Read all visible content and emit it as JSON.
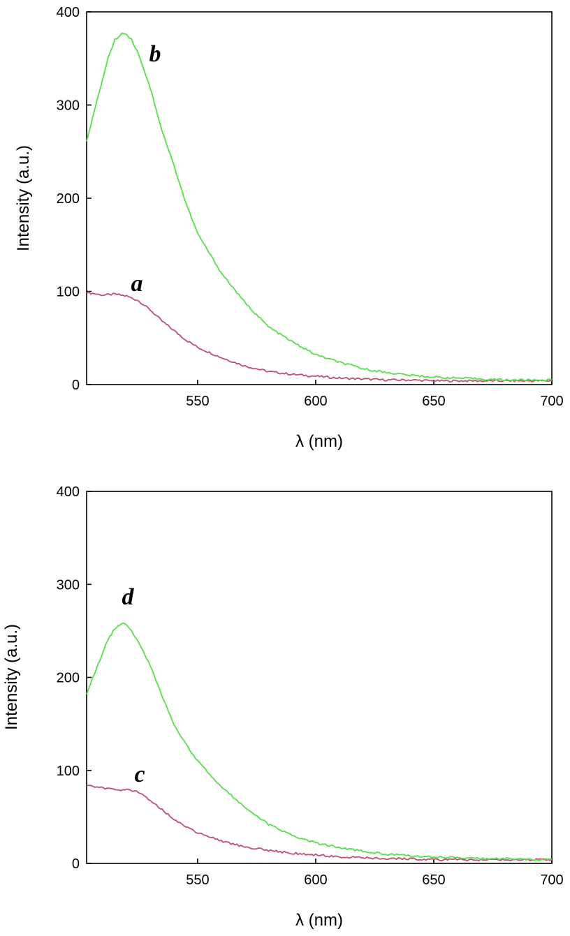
{
  "chart_data": [
    {
      "type": "line",
      "title": "",
      "xlabel": "λ (nm)",
      "ylabel": "Intensity (a.u.)",
      "xlim": [
        503,
        700
      ],
      "ylim": [
        0,
        400
      ],
      "xticks": [
        550,
        600,
        650,
        700
      ],
      "yticks": [
        0,
        100,
        200,
        300,
        400
      ],
      "grid": false,
      "series": [
        {
          "name": "a",
          "color": "#c0506a",
          "x": [
            503,
            510,
            515,
            520,
            525,
            530,
            535,
            540,
            545,
            550,
            560,
            570,
            580,
            590,
            600,
            610,
            620,
            630,
            640,
            650,
            660,
            670,
            680,
            690,
            700
          ],
          "y": [
            99,
            96,
            97,
            95,
            90,
            80,
            68,
            58,
            48,
            40,
            29,
            20,
            14,
            11,
            9,
            7,
            6,
            5,
            5,
            4,
            4,
            4,
            4,
            4,
            4
          ]
        },
        {
          "name": "b",
          "color": "#55e04a",
          "x": [
            503,
            508,
            512,
            515,
            518,
            520,
            522,
            525,
            530,
            535,
            540,
            545,
            550,
            560,
            570,
            580,
            590,
            600,
            610,
            620,
            630,
            640,
            650,
            660,
            670,
            680,
            690,
            700
          ],
          "y": [
            262,
            310,
            350,
            370,
            377,
            376,
            370,
            355,
            318,
            272,
            235,
            195,
            162,
            120,
            88,
            62,
            46,
            32,
            24,
            17,
            13,
            10,
            8,
            7,
            6,
            5,
            5,
            5
          ]
        }
      ],
      "annotations": [
        "b",
        "a"
      ]
    },
    {
      "type": "line",
      "title": "",
      "xlabel": "λ (nm)",
      "ylabel": "Intensity (a.u.)",
      "xlim": [
        503,
        700
      ],
      "ylim": [
        0,
        400
      ],
      "xticks": [
        550,
        600,
        650,
        700
      ],
      "yticks": [
        0,
        100,
        200,
        300,
        400
      ],
      "grid": false,
      "series": [
        {
          "name": "c",
          "color": "#c0506a",
          "x": [
            503,
            510,
            515,
            520,
            525,
            530,
            535,
            540,
            545,
            550,
            560,
            570,
            580,
            590,
            600,
            610,
            620,
            630,
            640,
            650,
            660,
            670,
            680,
            690,
            700
          ],
          "y": [
            84,
            81,
            79,
            79,
            77,
            68,
            58,
            47,
            40,
            33,
            24,
            18,
            14,
            11,
            9,
            7,
            6,
            5,
            5,
            4,
            4,
            4,
            4,
            4,
            4
          ]
        },
        {
          "name": "d",
          "color": "#55e04a",
          "x": [
            503,
            508,
            512,
            515,
            518,
            520,
            522,
            525,
            530,
            535,
            540,
            545,
            550,
            560,
            570,
            580,
            590,
            600,
            610,
            620,
            630,
            640,
            650,
            660,
            670,
            680,
            690,
            700
          ],
          "y": [
            182,
            215,
            240,
            253,
            258,
            256,
            250,
            238,
            212,
            180,
            150,
            128,
            110,
            83,
            60,
            42,
            30,
            22,
            17,
            13,
            10,
            8,
            7,
            6,
            5,
            5,
            4,
            4
          ]
        }
      ],
      "annotations": [
        "d",
        "c"
      ]
    }
  ]
}
